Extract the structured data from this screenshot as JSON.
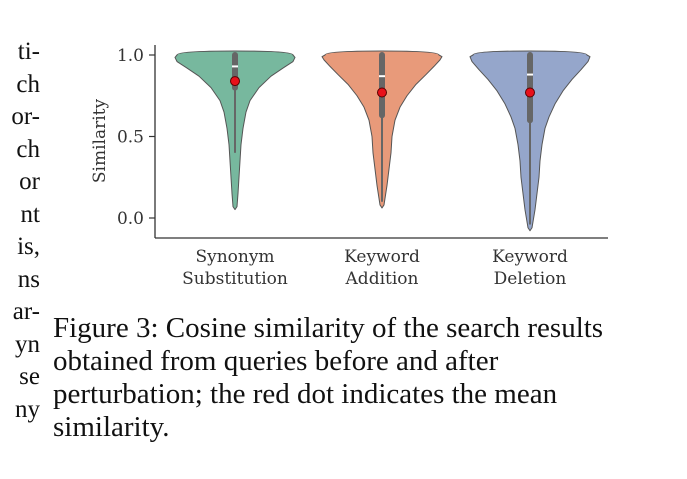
{
  "left_fragments": [
    "ti-",
    "ch",
    "or-",
    "ch",
    "or",
    "nt",
    "is,",
    "ns",
    "ar-",
    "yn",
    "se",
    "ny"
  ],
  "chart_data": {
    "type": "violin",
    "ylabel": "Similarity",
    "xlabel": "",
    "ylim": [
      -0.1,
      1.05
    ],
    "yticks": [
      "0.0",
      "0.5",
      "1.0"
    ],
    "ytick_values": [
      0.0,
      0.5,
      1.0
    ],
    "categories": [
      {
        "label_line1": "Synonym",
        "label_line2": "Substitution",
        "color": "#77b89e",
        "mean": 0.84,
        "median": 0.93,
        "q1": 0.8,
        "q3": 1.0,
        "min": 0.07,
        "whisker_low": 0.4,
        "profile": [
          [
            0.07,
            2
          ],
          [
            0.15,
            3
          ],
          [
            0.25,
            4
          ],
          [
            0.35,
            5
          ],
          [
            0.45,
            6
          ],
          [
            0.55,
            8
          ],
          [
            0.65,
            11
          ],
          [
            0.72,
            15
          ],
          [
            0.8,
            24
          ],
          [
            0.87,
            36
          ],
          [
            0.92,
            48
          ],
          [
            0.96,
            58
          ],
          [
            0.985,
            60
          ],
          [
            1.0,
            58
          ]
        ]
      },
      {
        "label_line1": "Keyword",
        "label_line2": "Addition",
        "color": "#e89a7a",
        "mean": 0.77,
        "median": 0.87,
        "q1": 0.63,
        "q3": 1.0,
        "min": 0.08,
        "whisker_low": 0.1,
        "profile": [
          [
            0.08,
            2
          ],
          [
            0.2,
            5
          ],
          [
            0.3,
            7
          ],
          [
            0.4,
            9
          ],
          [
            0.5,
            10
          ],
          [
            0.6,
            13
          ],
          [
            0.68,
            18
          ],
          [
            0.75,
            25
          ],
          [
            0.82,
            34
          ],
          [
            0.88,
            44
          ],
          [
            0.93,
            52
          ],
          [
            0.97,
            58
          ],
          [
            0.99,
            60
          ],
          [
            1.0,
            57
          ]
        ]
      },
      {
        "label_line1": "Keyword",
        "label_line2": "Deletion",
        "color": "#95a6cb",
        "mean": 0.77,
        "median": 0.88,
        "q1": 0.6,
        "q3": 1.0,
        "min": -0.06,
        "whisker_low": -0.04,
        "profile": [
          [
            -0.06,
            2
          ],
          [
            0.05,
            5
          ],
          [
            0.15,
            7
          ],
          [
            0.25,
            9
          ],
          [
            0.35,
            10
          ],
          [
            0.45,
            12
          ],
          [
            0.55,
            15
          ],
          [
            0.62,
            19
          ],
          [
            0.7,
            25
          ],
          [
            0.78,
            33
          ],
          [
            0.85,
            42
          ],
          [
            0.91,
            51
          ],
          [
            0.96,
            58
          ],
          [
            0.99,
            60
          ],
          [
            1.0,
            57
          ]
        ]
      }
    ]
  },
  "caption": "Figure 3: Cosine similarity of the search results obtained from queries before and after perturbation; the red dot indicates the mean similarity."
}
